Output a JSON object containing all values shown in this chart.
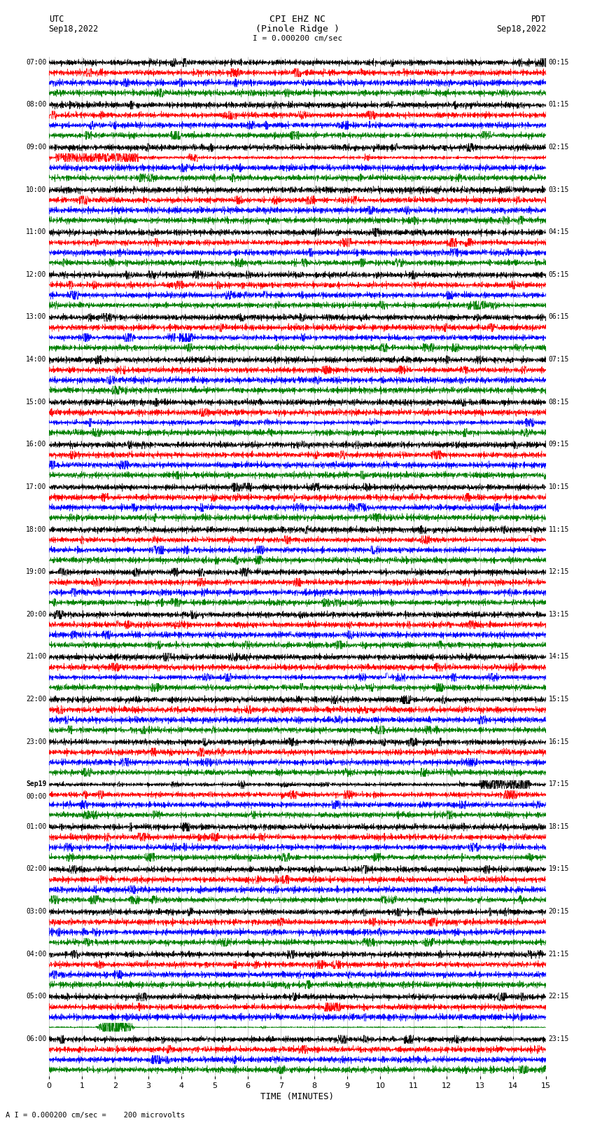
{
  "title_line1": "CPI EHZ NC",
  "title_line2": "(Pinole Ridge )",
  "scale_text": "I = 0.000200 cm/sec",
  "left_label_top": "UTC",
  "left_label_bot": "Sep18,2022",
  "right_label_top": "PDT",
  "right_label_bot": "Sep18,2022",
  "footer_text": "A I = 0.000200 cm/sec =    200 microvolts",
  "xlabel": "TIME (MINUTES)",
  "bg_color": "#ffffff",
  "trace_colors": [
    "black",
    "red",
    "blue",
    "green"
  ],
  "x_ticks": [
    0,
    1,
    2,
    3,
    4,
    5,
    6,
    7,
    8,
    9,
    10,
    11,
    12,
    13,
    14,
    15
  ],
  "left_times": [
    "07:00",
    "08:00",
    "09:00",
    "10:00",
    "11:00",
    "12:00",
    "13:00",
    "14:00",
    "15:00",
    "16:00",
    "17:00",
    "18:00",
    "19:00",
    "20:00",
    "21:00",
    "22:00",
    "23:00",
    "Sep19\n00:00",
    "01:00",
    "02:00",
    "03:00",
    "04:00",
    "05:00",
    "06:00"
  ],
  "right_times": [
    "00:15",
    "01:15",
    "02:15",
    "03:15",
    "04:15",
    "05:15",
    "06:15",
    "07:15",
    "08:15",
    "09:15",
    "10:15",
    "11:15",
    "12:15",
    "13:15",
    "14:15",
    "15:15",
    "16:15",
    "17:15",
    "18:15",
    "19:15",
    "20:15",
    "21:15",
    "22:15",
    "23:15"
  ],
  "num_rows": 24,
  "traces_per_row": 4,
  "sample_rate": 3000,
  "noise_base_std": 0.06,
  "trace_lw": 0.35
}
